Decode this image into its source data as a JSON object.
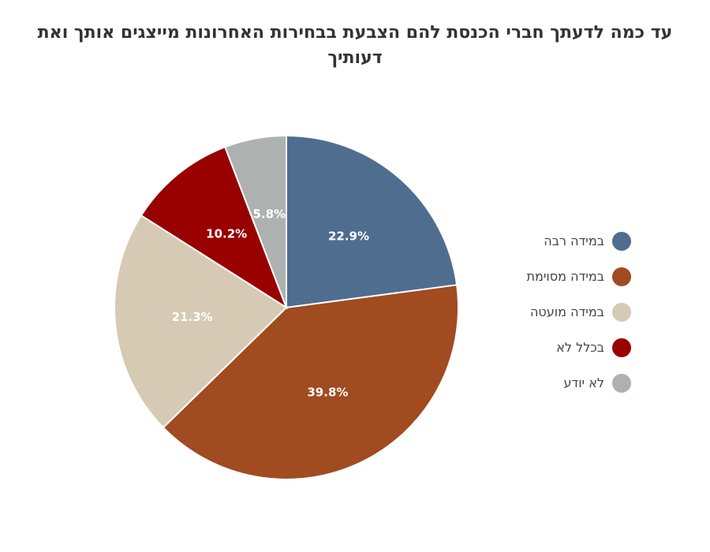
{
  "chart_data": {
    "type": "pie",
    "title": "עד כמה לדעתך חברי הכנסת להם הצבעת בבחירות האחרונות מייצגים אותך ואת דעותיך",
    "legend_position": "right",
    "slices": [
      {
        "name": "במידה רבה",
        "value": 22.9,
        "label": "22.9%",
        "color": "#4f6d8f"
      },
      {
        "name": "במידה מסוימת",
        "value": 39.8,
        "label": "39.8%",
        "color": "#a04b20"
      },
      {
        "name": "במידה מועטה",
        "value": 21.3,
        "label": "21.3%",
        "color": "#d6cab4"
      },
      {
        "name": "בכלל לא",
        "value": 10.2,
        "label": "10.2%",
        "color": "#990000"
      },
      {
        "name": "לא יודע",
        "value": 5.8,
        "label": "5.8%",
        "color": "#adb2b1"
      }
    ]
  }
}
